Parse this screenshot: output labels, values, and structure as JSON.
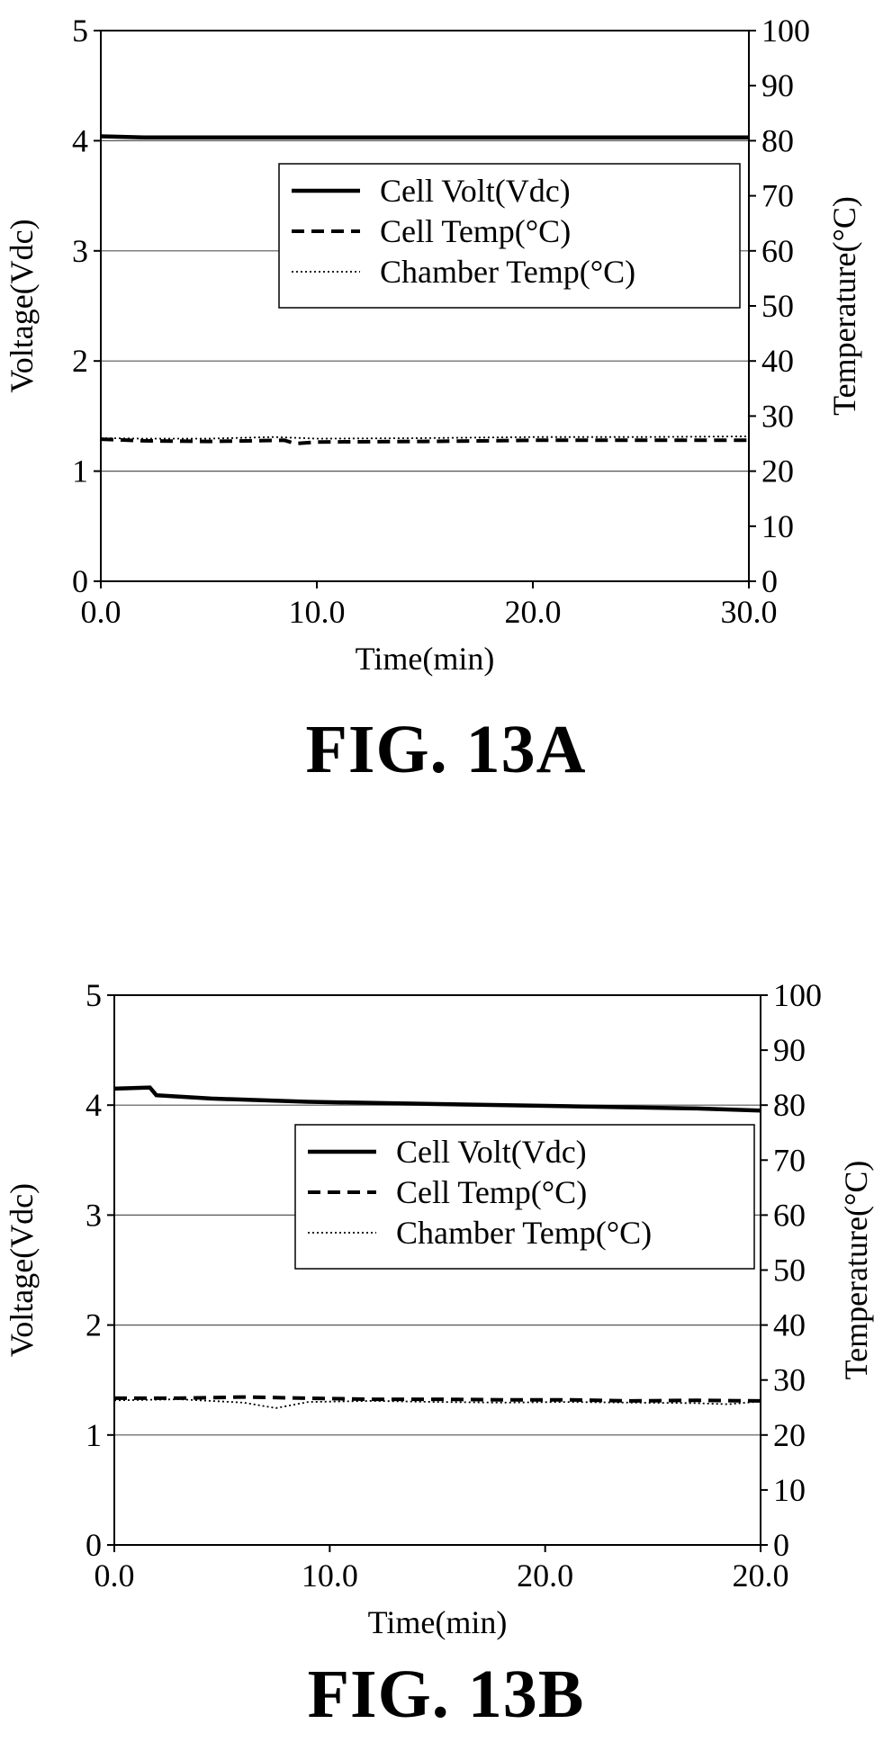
{
  "chart_data": [
    {
      "type": "line",
      "caption": "FIG. 13A",
      "xlabel": "Time(min)",
      "ylabel": "Voltage(Vdc)",
      "y2label": "Temperature(°C)",
      "xlim": [
        0,
        30
      ],
      "ylim": [
        0,
        5
      ],
      "y2lim": [
        0,
        100
      ],
      "xticks": [
        "0.0",
        "10.0",
        "20.0",
        "30.0"
      ],
      "yticks": [
        "0",
        "1",
        "2",
        "3",
        "4",
        "5"
      ],
      "y2ticks": [
        "0",
        "10",
        "20",
        "30",
        "40",
        "50",
        "60",
        "70",
        "80",
        "90",
        "100"
      ],
      "grid": "horizontal",
      "legend_position": "right",
      "series": [
        {
          "name": "Cell Volt(Vdc)",
          "axis": "left",
          "style": "solid",
          "x": [
            0,
            2,
            5,
            10,
            15,
            20,
            25,
            30
          ],
          "y": [
            4.04,
            4.03,
            4.03,
            4.03,
            4.03,
            4.03,
            4.03,
            4.03
          ]
        },
        {
          "name": "Cell Temp(°C)",
          "axis": "right",
          "style": "dashed",
          "x": [
            0,
            2,
            5,
            8.5,
            9,
            10,
            15,
            20,
            25,
            30
          ],
          "y": [
            25.8,
            25.5,
            25.4,
            25.6,
            25.0,
            25.3,
            25.4,
            25.6,
            25.6,
            25.6
          ]
        },
        {
          "name": "Chamber Temp(°C)",
          "axis": "right",
          "style": "dotted",
          "x": [
            0,
            2,
            5,
            8,
            10,
            15,
            20,
            25,
            30
          ],
          "y": [
            26.0,
            25.9,
            25.9,
            26.2,
            25.9,
            26.0,
            26.2,
            26.2,
            26.3
          ]
        }
      ]
    },
    {
      "type": "line",
      "caption": "FIG. 13B",
      "xlabel": "Time(min)",
      "ylabel": "Voltage(Vdc)",
      "y2label": "Temperature(°C)",
      "xlim": [
        0,
        20
      ],
      "ylim": [
        0,
        5
      ],
      "y2lim": [
        0,
        100
      ],
      "xticks": [
        "0.0",
        "10.0",
        "20.0",
        "20.0"
      ],
      "yticks": [
        "0",
        "1",
        "2",
        "3",
        "4",
        "5"
      ],
      "y2ticks": [
        "0",
        "10",
        "20",
        "30",
        "40",
        "50",
        "60",
        "70",
        "80",
        "90",
        "100"
      ],
      "grid": "horizontal",
      "legend_position": "right",
      "series": [
        {
          "name": "Cell Volt(Vdc)",
          "axis": "left",
          "style": "solid",
          "x": [
            0,
            1.1,
            1.3,
            3,
            6,
            10,
            14,
            18,
            20
          ],
          "y": [
            4.15,
            4.16,
            4.09,
            4.06,
            4.03,
            4.01,
            3.99,
            3.97,
            3.95
          ]
        },
        {
          "name": "Cell Temp(°C)",
          "axis": "right",
          "style": "dashed",
          "x": [
            0,
            2,
            4,
            6,
            8,
            10,
            12,
            14,
            16,
            18,
            20
          ],
          "y": [
            26.7,
            26.7,
            26.9,
            26.7,
            26.5,
            26.5,
            26.4,
            26.4,
            26.2,
            26.3,
            26.2
          ]
        },
        {
          "name": "Chamber Temp(°C)",
          "axis": "right",
          "style": "dotted",
          "x": [
            0,
            2,
            4,
            5,
            6,
            8,
            10,
            12,
            14,
            16,
            18,
            19,
            20
          ],
          "y": [
            26.3,
            26.5,
            25.9,
            24.9,
            26.0,
            26.2,
            26.0,
            25.9,
            26.0,
            25.9,
            25.8,
            25.6,
            26.1
          ]
        }
      ]
    }
  ]
}
